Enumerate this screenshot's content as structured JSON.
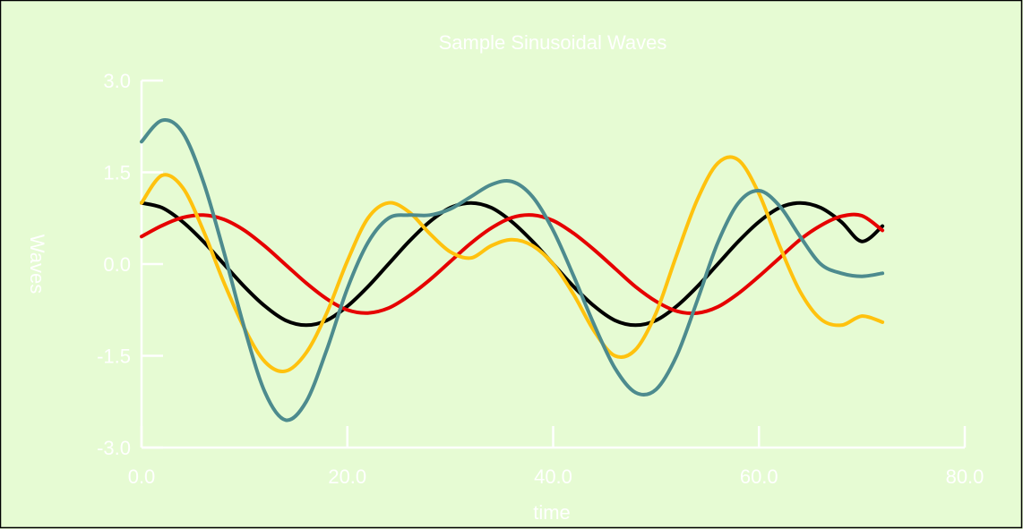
{
  "chart_data": {
    "type": "line",
    "title": "Sample Sinusoidal Waves",
    "xlabel": "time",
    "ylabel": "Waves",
    "xlim": [
      0,
      80
    ],
    "ylim": [
      -3,
      3
    ],
    "x_ticks": [
      "0.0",
      "20.0",
      "40.0",
      "60.0",
      "80.0"
    ],
    "y_ticks": [
      "3.0",
      "1.5",
      "0.0",
      "-1.5",
      "-3.0"
    ],
    "x": [
      0,
      2,
      4,
      6,
      8,
      10,
      12,
      14,
      16,
      18,
      20,
      22,
      24,
      26,
      28,
      30,
      32,
      34,
      36,
      38,
      40,
      42,
      44,
      46,
      48,
      50,
      52,
      54,
      56,
      58,
      60,
      62,
      64,
      66,
      68,
      70,
      72
    ],
    "series": [
      {
        "color": "#000000",
        "values": [
          1.0,
          0.92,
          0.69,
          0.37,
          0.0,
          -0.37,
          -0.69,
          -0.92,
          -1.0,
          -0.92,
          -0.69,
          -0.37,
          0.0,
          0.37,
          0.69,
          0.92,
          1.0,
          0.92,
          0.69,
          0.37,
          0.0,
          -0.37,
          -0.69,
          -0.92,
          -1.0,
          -0.92,
          -0.69,
          -0.37,
          0.0,
          0.37,
          0.69,
          0.92,
          1.0,
          0.92,
          0.69,
          0.37,
          0.62
        ]
      },
      {
        "color": "#e60000",
        "values": [
          0.45,
          0.63,
          0.76,
          0.8,
          0.73,
          0.55,
          0.29,
          -0.01,
          -0.31,
          -0.57,
          -0.75,
          -0.8,
          -0.72,
          -0.52,
          -0.26,
          0.04,
          0.34,
          0.59,
          0.76,
          0.8,
          0.71,
          0.5,
          0.23,
          -0.07,
          -0.37,
          -0.61,
          -0.77,
          -0.8,
          -0.7,
          -0.48,
          -0.2,
          0.1,
          0.4,
          0.63,
          0.78,
          0.79,
          0.55
        ]
      },
      {
        "color": "#ffc20e",
        "values": [
          1.0,
          1.45,
          1.25,
          0.55,
          -0.3,
          -1.05,
          -1.6,
          -1.75,
          -1.45,
          -0.8,
          0.05,
          0.75,
          1.0,
          0.85,
          0.5,
          0.2,
          0.1,
          0.3,
          0.4,
          0.3,
          0.0,
          -0.5,
          -1.1,
          -1.5,
          -1.4,
          -0.8,
          0.15,
          1.05,
          1.65,
          1.7,
          1.15,
          0.3,
          -0.45,
          -0.9,
          -1.0,
          -0.85,
          -0.95
        ]
      },
      {
        "color": "#4d8b8e",
        "values": [
          2.0,
          2.35,
          2.15,
          1.35,
          0.2,
          -1.05,
          -2.1,
          -2.55,
          -2.25,
          -1.4,
          -0.4,
          0.35,
          0.75,
          0.8,
          0.8,
          0.9,
          1.1,
          1.3,
          1.35,
          1.1,
          0.55,
          -0.2,
          -1.0,
          -1.7,
          -2.1,
          -2.05,
          -1.5,
          -0.6,
          0.35,
          1.0,
          1.2,
          0.95,
          0.45,
          0.0,
          -0.15,
          -0.2,
          -0.15
        ]
      }
    ]
  }
}
